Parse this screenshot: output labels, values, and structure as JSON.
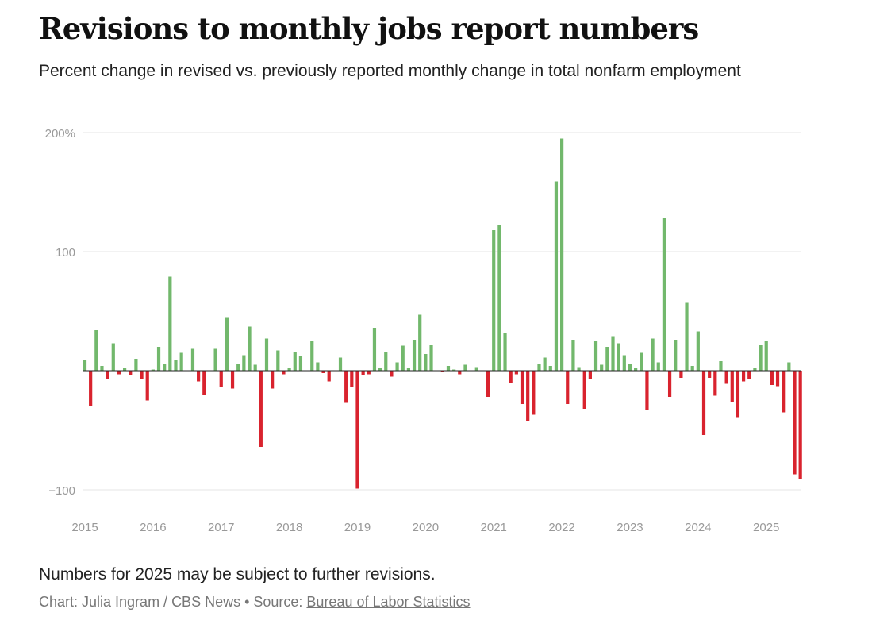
{
  "title": "Revisions to monthly jobs report numbers",
  "subtitle": "Percent change in revised vs. previously reported monthly change in total nonfarm employment",
  "note": "Numbers for 2025 may be subject to further revisions.",
  "credit": {
    "prefix": "Chart: Julia Ingram / CBS News • Source: ",
    "source_link": "Bureau of Labor Statistics"
  },
  "colors": {
    "positive": "#72b86c",
    "negative": "#d9232e",
    "grid": "#e6e6e6",
    "axis_text": "#999999",
    "zero_line": "#222222"
  },
  "chart_data": {
    "type": "bar",
    "ylim": [
      -100,
      200
    ],
    "yticks": [
      -100,
      100,
      200
    ],
    "ytick_labels": [
      "−100",
      "100",
      "200%"
    ],
    "xtick_labels": [
      "2015",
      "2016",
      "2017",
      "2018",
      "2019",
      "2020",
      "2021",
      "2022",
      "2023",
      "2024",
      "2025"
    ],
    "grid": true,
    "start": "2015-01",
    "values": [
      9,
      -30,
      34,
      4,
      -7,
      23,
      -3,
      2,
      -4,
      10,
      -7,
      -25,
      1,
      20,
      6,
      79,
      9,
      15,
      0,
      19,
      -9,
      -20,
      0,
      19,
      -14,
      45,
      -15,
      6,
      13,
      37,
      5,
      -64,
      27,
      -15,
      17,
      -3,
      2,
      16,
      12,
      0,
      25,
      7,
      -2,
      -9,
      0,
      11,
      -27,
      -14,
      -99,
      -4,
      -3,
      36,
      2,
      16,
      -5,
      7,
      21,
      2,
      26,
      47,
      14,
      22,
      0,
      -1,
      4,
      1,
      -3,
      5,
      0,
      3,
      0,
      -22,
      118,
      122,
      32,
      -10,
      -3,
      -28,
      -42,
      -37,
      6,
      11,
      4,
      159,
      195,
      -28,
      26,
      3,
      -32,
      -7,
      25,
      5,
      20,
      29,
      23,
      13,
      6,
      2,
      15,
      -33,
      27,
      7,
      128,
      -22,
      26,
      -6,
      57,
      4,
      33,
      -54,
      -6,
      -21,
      8,
      -11,
      -26,
      -39,
      -9,
      -7,
      2,
      22,
      25,
      -12,
      -13,
      -35,
      7,
      -87,
      -91
    ]
  }
}
